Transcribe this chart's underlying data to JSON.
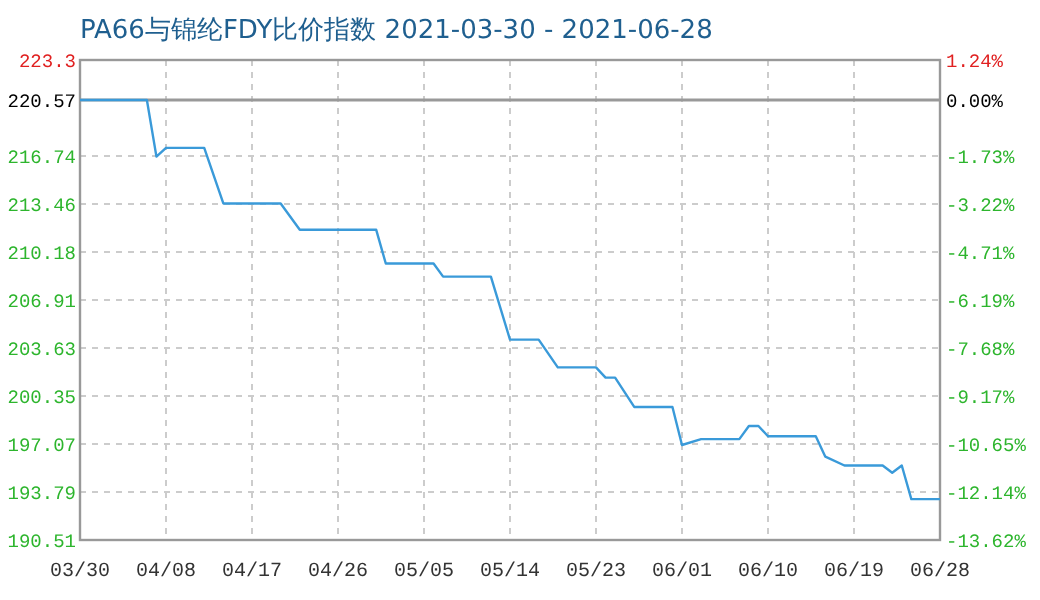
{
  "chart_data": {
    "type": "line",
    "title": "PA66与锦纶FDY比价指数 2021-03-30 - 2021-06-28",
    "x": [
      "2021-03-30",
      "2021-04-06",
      "2021-04-07",
      "2021-04-08",
      "2021-04-12",
      "2021-04-14",
      "2021-04-20",
      "2021-04-22",
      "2021-04-30",
      "2021-05-01",
      "2021-05-06",
      "2021-05-07",
      "2021-05-12",
      "2021-05-14",
      "2021-05-17",
      "2021-05-19",
      "2021-05-23",
      "2021-05-24",
      "2021-05-25",
      "2021-05-27",
      "2021-05-31",
      "2021-06-01",
      "2021-06-03",
      "2021-06-07",
      "2021-06-08",
      "2021-06-09",
      "2021-06-10",
      "2021-06-15",
      "2021-06-16",
      "2021-06-18",
      "2021-06-22",
      "2021-06-23",
      "2021-06-24",
      "2021-06-25",
      "2021-06-28"
    ],
    "series": [
      {
        "color": "#3a9ad9",
        "values": [
          220.57,
          220.57,
          216.7,
          217.3,
          217.3,
          213.5,
          213.5,
          211.7,
          211.7,
          209.4,
          209.4,
          208.5,
          208.5,
          204.2,
          204.2,
          202.3,
          202.3,
          201.6,
          201.6,
          199.6,
          199.6,
          197.0,
          197.4,
          197.4,
          198.3,
          198.3,
          197.6,
          197.6,
          196.2,
          195.6,
          195.6,
          195.1,
          195.6,
          193.3,
          193.3
        ]
      }
    ],
    "xlim": [
      "2021-03-30",
      "2021-06-28"
    ],
    "xticks": [
      {
        "value": "2021-03-30",
        "label": "03/30"
      },
      {
        "value": "2021-04-08",
        "label": "04/08"
      },
      {
        "value": "2021-04-17",
        "label": "04/17"
      },
      {
        "value": "2021-04-26",
        "label": "04/26"
      },
      {
        "value": "2021-05-05",
        "label": "05/05"
      },
      {
        "value": "2021-05-14",
        "label": "05/14"
      },
      {
        "value": "2021-05-23",
        "label": "05/23"
      },
      {
        "value": "2021-06-01",
        "label": "06/01"
      },
      {
        "value": "2021-06-10",
        "label": "06/10"
      },
      {
        "value": "2021-06-19",
        "label": "06/19"
      },
      {
        "value": "2021-06-28",
        "label": "06/28"
      }
    ],
    "ylim": [
      190.51,
      223.3
    ],
    "yticks": [
      190.51,
      193.79,
      197.07,
      200.35,
      203.63,
      206.91,
      210.18,
      213.46,
      216.74,
      220.57,
      223.3
    ],
    "y2lim": [
      -13.62,
      1.24
    ],
    "y2ticks": [
      {
        "value": -13.62,
        "label": "-13.62%"
      },
      {
        "value": -12.14,
        "label": "-12.14%"
      },
      {
        "value": -10.65,
        "label": "-10.65%"
      },
      {
        "value": -9.17,
        "label": "-9.17%"
      },
      {
        "value": -7.68,
        "label": "-7.68%"
      },
      {
        "value": -6.19,
        "label": "-6.19%"
      },
      {
        "value": -4.71,
        "label": "-4.71%"
      },
      {
        "value": -3.22,
        "label": "-3.22%"
      },
      {
        "value": -1.73,
        "label": "-1.73%"
      },
      {
        "value": 0,
        "label": "0.00%"
      },
      {
        "value": 1.24,
        "label": "1.24%"
      }
    ],
    "ref_lines": [
      {
        "axis": "y2",
        "value": 0,
        "color": "#999999"
      }
    ],
    "grid": true,
    "marker": "none",
    "line_style": "solid"
  }
}
